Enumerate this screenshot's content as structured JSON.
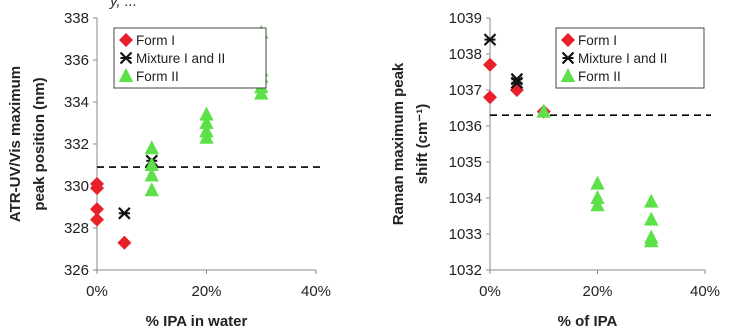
{
  "header_fragment": {
    "text": "y, ...",
    "link": ""
  },
  "chart_data": [
    {
      "type": "scatter",
      "title": "",
      "xlabel": "% IPA in water",
      "ylabel_lines": [
        "ATR-UV/Vis maximum",
        "peak position (nm)"
      ],
      "xlim": [
        0,
        40
      ],
      "ylim": [
        326,
        338
      ],
      "x_ticks": [
        0,
        20,
        40
      ],
      "x_tick_labels": [
        "0%",
        "20%",
        "40%"
      ],
      "y_ticks": [
        326,
        328,
        330,
        332,
        334,
        336,
        338
      ],
      "y_tick_labels": [
        "326",
        "328",
        "330",
        "332",
        "334",
        "336",
        "338"
      ],
      "reference_line": {
        "y": 330.9,
        "style": "dashed"
      },
      "legend": {
        "placement": "top-left"
      },
      "series": [
        {
          "name": "Form I",
          "marker": "diamond",
          "color": "#e8202a",
          "x": [
            0,
            0,
            0,
            0,
            5
          ],
          "y": [
            330.1,
            329.9,
            328.9,
            328.4,
            327.3
          ]
        },
        {
          "name": "Mixture I and II",
          "marker": "asterisk",
          "color": "#111111",
          "x": [
            5,
            10
          ],
          "y": [
            328.7,
            331.2
          ]
        },
        {
          "name": "Form II",
          "marker": "triangle",
          "color": "#5ee04a",
          "x": [
            10,
            10,
            10,
            10,
            20,
            20,
            20,
            20,
            30,
            30,
            30,
            30,
            30
          ],
          "y": [
            331.8,
            331.0,
            330.5,
            329.8,
            333.4,
            333.0,
            332.6,
            332.3,
            337.3,
            335.5,
            335.2,
            334.7,
            334.4
          ]
        }
      ]
    },
    {
      "type": "scatter",
      "title": "",
      "xlabel": "% of IPA",
      "ylabel_lines": [
        "Raman maximum peak",
        "shift (cm⁻¹)"
      ],
      "xlim": [
        0,
        40
      ],
      "ylim": [
        1032,
        1039
      ],
      "x_ticks": [
        0,
        20,
        40
      ],
      "x_tick_labels": [
        "0%",
        "20%",
        "40%"
      ],
      "y_ticks": [
        1032,
        1033,
        1034,
        1035,
        1036,
        1037,
        1038,
        1039
      ],
      "y_tick_labels": [
        "1032",
        "1033",
        "1034",
        "1035",
        "1036",
        "1037",
        "1038",
        "1039"
      ],
      "reference_line": {
        "y": 1036.3,
        "style": "dashed"
      },
      "legend": {
        "placement": "top-right"
      },
      "series": [
        {
          "name": "Form I",
          "marker": "diamond",
          "color": "#e8202a",
          "x": [
            0,
            0,
            5,
            10
          ],
          "y": [
            1037.7,
            1036.8,
            1037.0,
            1036.4
          ]
        },
        {
          "name": "Mixture I and II",
          "marker": "asterisk",
          "color": "#111111",
          "x": [
            0,
            5,
            5
          ],
          "y": [
            1038.4,
            1037.3,
            1037.2
          ]
        },
        {
          "name": "Form II",
          "marker": "triangle",
          "color": "#5ee04a",
          "x": [
            10,
            20,
            20,
            20,
            30,
            30,
            30,
            30
          ],
          "y": [
            1036.4,
            1034.4,
            1034.0,
            1033.8,
            1033.9,
            1033.4,
            1032.9,
            1032.8
          ]
        }
      ]
    }
  ]
}
